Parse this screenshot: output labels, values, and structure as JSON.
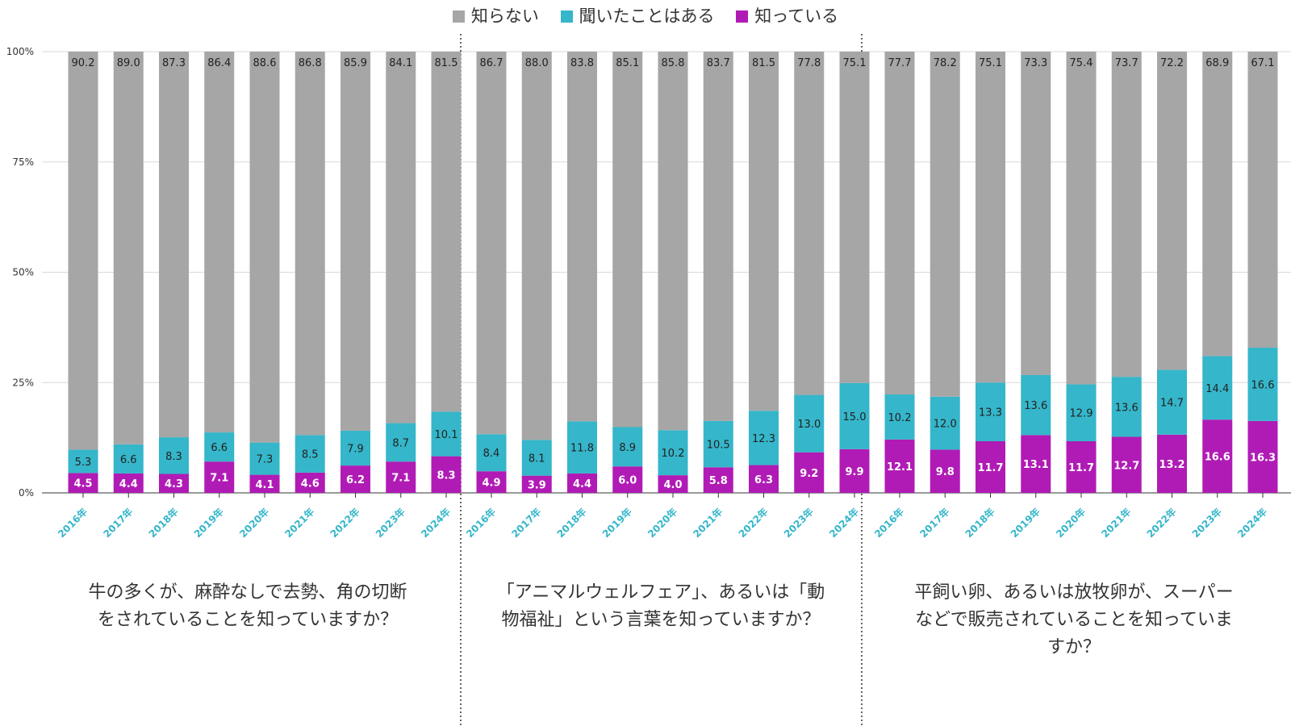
{
  "legend": {
    "unknown": "知らない",
    "heard": "聞いたことはある",
    "know": "知っている"
  },
  "colors": {
    "unknown": "#a6a6a6",
    "heard": "#35b6ca",
    "know": "#b01bb5",
    "year_label": "#35b6ca"
  },
  "chart_data": {
    "type": "bar",
    "stacked": true,
    "y_ticks": [
      "0%",
      "25%",
      "50%",
      "75%",
      "100%"
    ],
    "ylim": [
      0,
      100
    ],
    "grid": true,
    "legend_position": "top-center",
    "series_names": [
      "知っている",
      "聞いたことはある",
      "知らない"
    ],
    "groups": [
      {
        "question": "牛の多くが、麻酔なしで去勢、角の切断をされていることを知っていますか？",
        "categories": [
          "2016年",
          "2017年",
          "2018年",
          "2019年",
          "2020年",
          "2021年",
          "2022年",
          "2023年",
          "2024年"
        ],
        "know": [
          4.5,
          4.4,
          4.3,
          7.1,
          4.1,
          4.6,
          6.2,
          7.1,
          8.3
        ],
        "heard": [
          5.3,
          6.6,
          8.3,
          6.6,
          7.3,
          8.5,
          7.9,
          8.7,
          10.1
        ],
        "unknown": [
          90.2,
          89.0,
          87.3,
          86.4,
          88.6,
          86.8,
          85.9,
          84.1,
          81.5
        ]
      },
      {
        "question": "「アニマルウェルフェア」、あるいは「動物福祉」という言葉を知っていますか？",
        "categories": [
          "2016年",
          "2017年",
          "2018年",
          "2019年",
          "2020年",
          "2021年",
          "2022年",
          "2023年",
          "2024年"
        ],
        "know": [
          4.9,
          3.9,
          4.4,
          6.0,
          4.0,
          5.8,
          6.3,
          9.2,
          9.9
        ],
        "heard": [
          8.4,
          8.1,
          11.8,
          8.9,
          10.2,
          10.5,
          12.3,
          13.0,
          15.0
        ],
        "unknown": [
          86.7,
          88.0,
          83.8,
          85.1,
          85.8,
          83.7,
          81.5,
          77.8,
          75.1
        ]
      },
      {
        "question": "平飼い卵、あるいは放牧卵が、スーパーなどで販売されていることを知っていますか？",
        "categories": [
          "2016年",
          "2017年",
          "2018年",
          "2019年",
          "2020年",
          "2021年",
          "2022年",
          "2023年",
          "2024年"
        ],
        "know": [
          12.1,
          9.8,
          11.7,
          13.1,
          11.7,
          12.7,
          13.2,
          16.6,
          16.3
        ],
        "heard": [
          10.2,
          12.0,
          13.3,
          13.6,
          12.9,
          13.6,
          14.7,
          14.4,
          16.6
        ],
        "unknown": [
          77.7,
          78.2,
          75.1,
          73.3,
          75.4,
          73.7,
          72.2,
          68.9,
          67.1
        ]
      }
    ]
  }
}
